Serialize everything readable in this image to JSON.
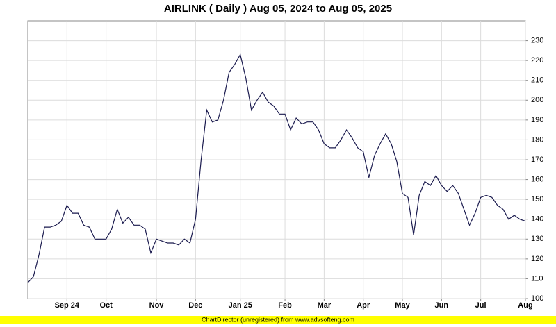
{
  "chart_data": {
    "type": "line",
    "title": "AIRLINK ( Daily ) Aug 05, 2024 to Aug 05, 2025",
    "footer": "ChartDirector (unregistered) from www.advsofteng.com",
    "categories": [
      null,
      null,
      null,
      null,
      null,
      null,
      null,
      "Sep 24",
      null,
      null,
      null,
      null,
      null,
      null,
      "Oct",
      null,
      null,
      null,
      null,
      null,
      null,
      null,
      null,
      "Nov",
      null,
      null,
      null,
      null,
      null,
      null,
      "Dec",
      null,
      null,
      null,
      null,
      null,
      null,
      null,
      "Jan 25",
      null,
      null,
      null,
      null,
      null,
      null,
      null,
      "Feb",
      null,
      null,
      null,
      null,
      null,
      null,
      "Mar",
      null,
      null,
      null,
      null,
      null,
      null,
      "Apr",
      null,
      null,
      null,
      null,
      null,
      null,
      "May",
      null,
      null,
      null,
      null,
      null,
      null,
      "Jun",
      null,
      null,
      null,
      null,
      null,
      null,
      "Jul",
      null,
      null,
      null,
      null,
      null,
      null,
      null,
      "Aug"
    ],
    "series": [
      {
        "name": "AIRLINK",
        "color": "#1a1a4e",
        "values": [
          108,
          111,
          122,
          136,
          136,
          137,
          139,
          147,
          143,
          143,
          137,
          136,
          130,
          130,
          130,
          135,
          145,
          138,
          141,
          137,
          137,
          135,
          123,
          130,
          129,
          128,
          128,
          127,
          130,
          128,
          140,
          170,
          195,
          189,
          190,
          200,
          214,
          218,
          223,
          211,
          195,
          200,
          204,
          199,
          197,
          193,
          193,
          185,
          191,
          188,
          189,
          189,
          185,
          178,
          176,
          176,
          180,
          185,
          181,
          176,
          174,
          161,
          172,
          178,
          183,
          178,
          169,
          153,
          151,
          132,
          152,
          159,
          157,
          162,
          157,
          154,
          157,
          153,
          145,
          137,
          143,
          151,
          152,
          151,
          147,
          145,
          140,
          142,
          140,
          139
        ]
      }
    ],
    "ylim": [
      100,
      240
    ],
    "yticks": [
      100,
      110,
      120,
      130,
      140,
      150,
      160,
      170,
      180,
      190,
      200,
      210,
      220,
      230
    ],
    "grid": true
  }
}
